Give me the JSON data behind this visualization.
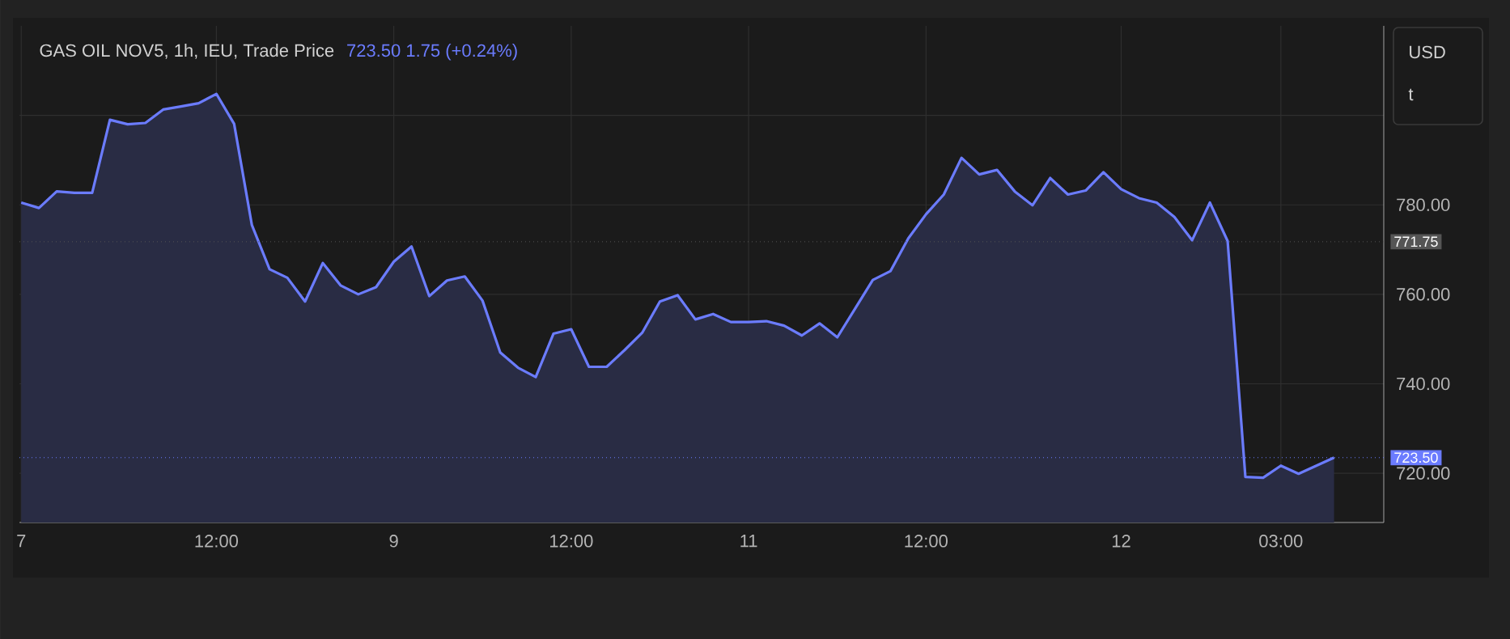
{
  "chart_data": {
    "type": "area",
    "title": "GAS OIL NOV5, 1h, IEU, Trade Price",
    "subtitle": "723.50  1.75 (+0.24%)",
    "annotations": [
      "USD",
      "t"
    ],
    "categories": [
      "7",
      null,
      null,
      null,
      null,
      null,
      null,
      null,
      null,
      null,
      null,
      "12:00",
      null,
      null,
      null,
      null,
      null,
      null,
      null,
      null,
      null,
      "9",
      null,
      null,
      null,
      null,
      null,
      null,
      null,
      null,
      null,
      "12:00",
      null,
      null,
      null,
      null,
      null,
      null,
      null,
      null,
      null,
      "11",
      null,
      null,
      null,
      null,
      null,
      null,
      null,
      null,
      null,
      "12:00",
      null,
      null,
      null,
      null,
      null,
      null,
      null,
      null,
      null,
      null,
      "12",
      null,
      null,
      null,
      null,
      null,
      null,
      null,
      null,
      "03:00",
      null,
      null,
      null
    ],
    "series": [
      {
        "color": "#6b7cff",
        "values": [
          780.5,
          779.3,
          783,
          782.7,
          782.7,
          799,
          798,
          798.3,
          801.3,
          802,
          802.7,
          804.8,
          798.1,
          775.5,
          765.6,
          763.7,
          758.4,
          767,
          762,
          760,
          761.6,
          767.3,
          770.7,
          759.6,
          763.1,
          764,
          758.6,
          747,
          743.6,
          741.5,
          751.2,
          752.2,
          743.8,
          743.8,
          747.5,
          751.4,
          758.4,
          759.8,
          754.4,
          755.6,
          753.8,
          753.8,
          754,
          753,
          750.8,
          753.5,
          750.4,
          756.8,
          763.2,
          765.2,
          772.5,
          777.9,
          782.3,
          790.5,
          786.8,
          787.8,
          783,
          779.9,
          786,
          782.3,
          783.2,
          787.3,
          783.5,
          781.5,
          780.5,
          777.3,
          772.1,
          780.5,
          771.9,
          719.2,
          719,
          721.7,
          719.9,
          721.7,
          723.5
        ]
      }
    ],
    "ylim": [
      709,
      820
    ],
    "yticks": [
      {
        "value": 720,
        "label": "720.00"
      },
      {
        "value": 740,
        "label": "740.00"
      },
      {
        "value": 760,
        "label": "760.00"
      },
      {
        "value": 780,
        "label": "780.00"
      },
      {
        "value": 800,
        "label": null
      }
    ],
    "ref_lines": [
      {
        "axis": "y",
        "value": 771.75,
        "label": "771.75",
        "color": "#555555",
        "line_style": "dotted"
      },
      {
        "axis": "y",
        "value": 723.5,
        "label": "723.50",
        "color": "#6b7cff",
        "line_style": "dotted"
      }
    ],
    "grid": true,
    "marker": "none"
  }
}
